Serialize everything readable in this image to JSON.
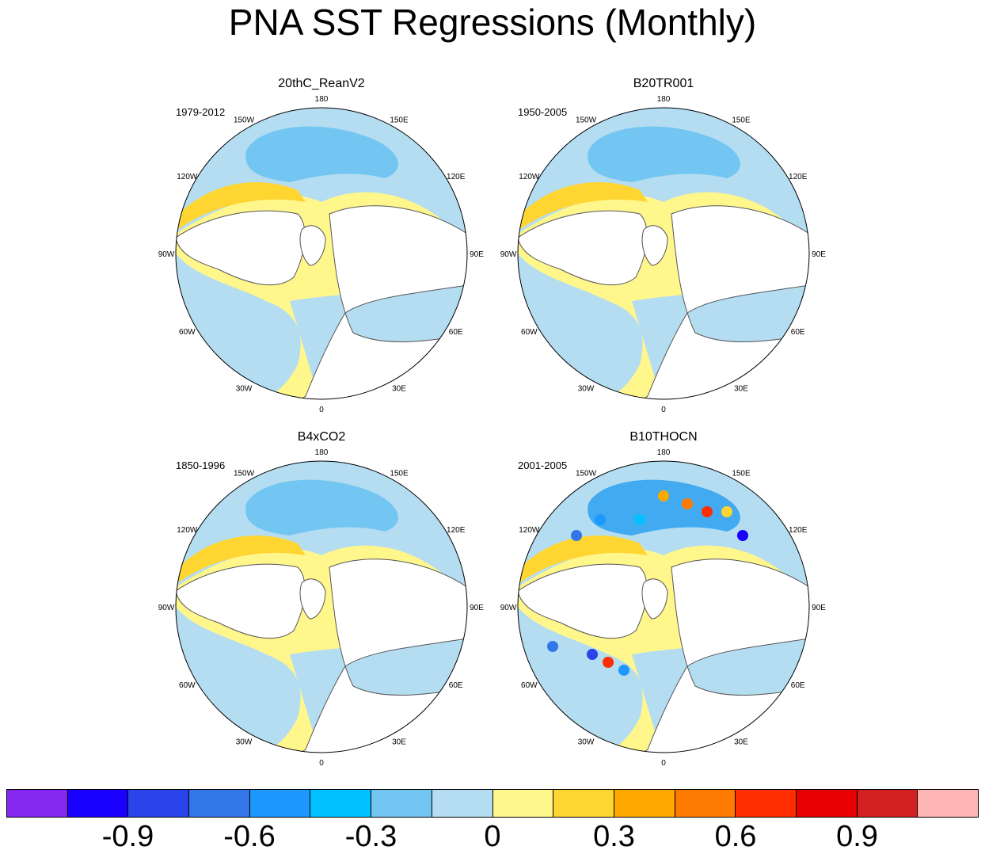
{
  "title": "PNA SST Regressions (Monthly)",
  "panels": [
    {
      "name": "20thC_ReanV2",
      "years": "1979-2012",
      "fields": {
        "pacific_core": "#73c6f1",
        "pacific_belt": "#b4ddf2",
        "alaska_band": "#ffd531",
        "atlantic": "#b4ddf2",
        "atlantic_warm": "#fff68c"
      }
    },
    {
      "name": "B20TR001",
      "years": "1950-2005",
      "fields": {
        "pacific_core": "#73c6f1",
        "pacific_belt": "#b4ddf2",
        "alaska_band": "#ffd531",
        "atlantic": "#b4ddf2",
        "atlantic_warm": "#fff68c"
      }
    },
    {
      "name": "B4xCO2",
      "years": "1850-1996",
      "fields": {
        "pacific_core": "#73c6f1",
        "pacific_belt": "#b4ddf2",
        "alaska_band": "#ffd531",
        "atlantic": "#b4ddf2",
        "atlantic_warm": "#fff68c"
      }
    },
    {
      "name": "B10THOCN",
      "years": "2001-2005",
      "fields": {
        "pacific_core": "#42aaf0",
        "pacific_belt": "#b4ddf2",
        "alaska_band": "#ffd531",
        "atlantic": "#b4ddf2",
        "atlantic_warm": "#fff68c"
      }
    }
  ],
  "longitude_labels": [
    "180",
    "150E",
    "120E",
    "90E",
    "60E",
    "30E",
    "0",
    "30W",
    "60W",
    "90W",
    "120W",
    "150W"
  ],
  "colorbar": {
    "colors": [
      "#8428f0",
      "#1a00ff",
      "#2a44ea",
      "#3376e8",
      "#1c98ff",
      "#00c1ff",
      "#73c6f1",
      "#b4ddf2",
      "#fff68c",
      "#ffd531",
      "#ffa800",
      "#ff7a00",
      "#ff2e00",
      "#e60000",
      "#d21f1f",
      "#ffb4b4"
    ],
    "labels": [
      "-0.9",
      "-0.6",
      "-0.3",
      "0",
      "0.3",
      "0.6",
      "0.9"
    ],
    "label_box_index": [
      1,
      3,
      5,
      7,
      9,
      11,
      13
    ]
  }
}
